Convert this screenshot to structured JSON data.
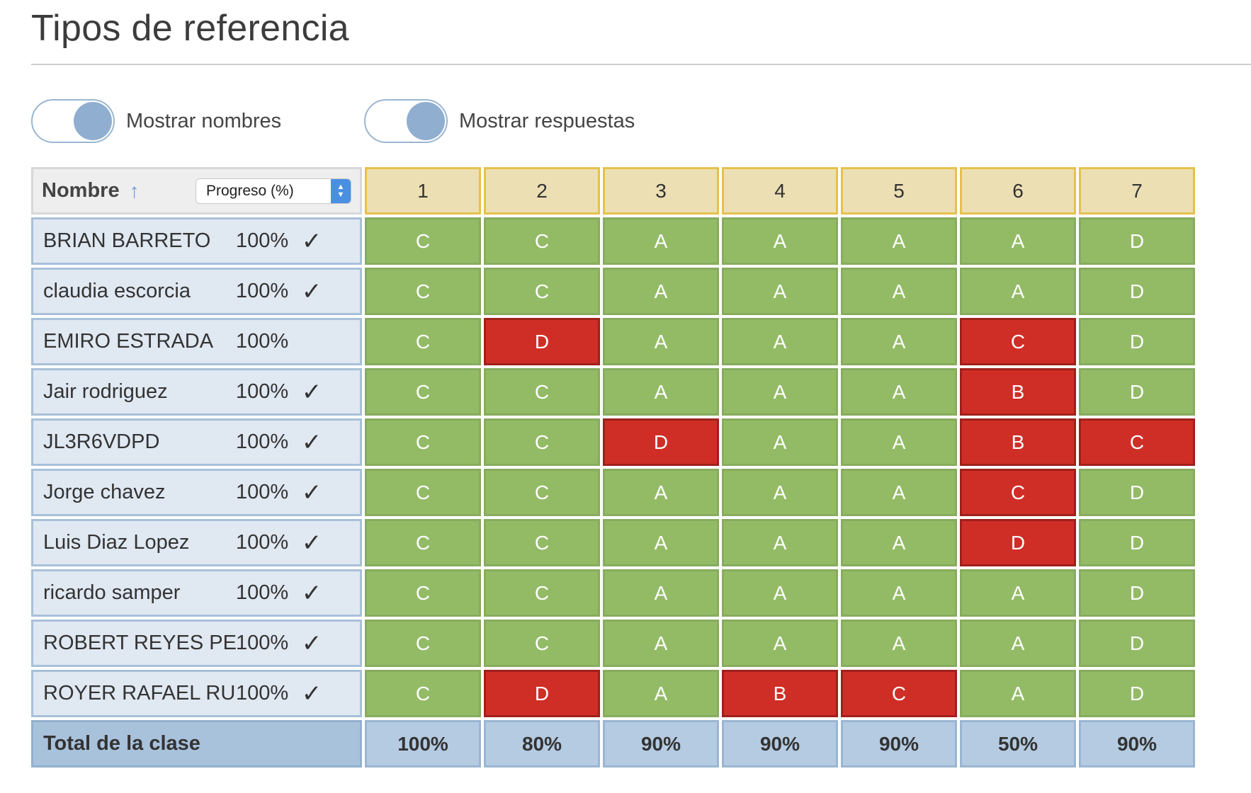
{
  "page": {
    "title": "Tipos de referencia"
  },
  "toggles": [
    {
      "label": "Mostrar nombres",
      "on": true
    },
    {
      "label": "Mostrar respuestas",
      "on": true
    }
  ],
  "header": {
    "name_label": "Nombre",
    "sort_icon": "arrow-up-icon",
    "select_value": "Progreso (%)",
    "questions": [
      "1",
      "2",
      "3",
      "4",
      "5",
      "6",
      "7"
    ]
  },
  "students": [
    {
      "name": "BRIAN BARRETO",
      "progress": "100%",
      "check": "✓",
      "answers": [
        "C",
        "C",
        "A",
        "A",
        "A",
        "A",
        "D"
      ],
      "correct": [
        true,
        true,
        true,
        true,
        true,
        true,
        true
      ]
    },
    {
      "name": "claudia escorcia",
      "progress": "100%",
      "check": "✓",
      "answers": [
        "C",
        "C",
        "A",
        "A",
        "A",
        "A",
        "D"
      ],
      "correct": [
        true,
        true,
        true,
        true,
        true,
        true,
        true
      ]
    },
    {
      "name": "EMIRO ESTRADA",
      "progress": "100%",
      "check": "",
      "answers": [
        "C",
        "D",
        "A",
        "A",
        "A",
        "C",
        "D"
      ],
      "correct": [
        true,
        false,
        true,
        true,
        true,
        false,
        true
      ]
    },
    {
      "name": "Jair rodriguez",
      "progress": "100%",
      "check": "✓",
      "answers": [
        "C",
        "C",
        "A",
        "A",
        "A",
        "B",
        "D"
      ],
      "correct": [
        true,
        true,
        true,
        true,
        true,
        false,
        true
      ]
    },
    {
      "name": "JL3R6VDPD",
      "progress": "100%",
      "check": "✓",
      "answers": [
        "C",
        "C",
        "D",
        "A",
        "A",
        "B",
        "C"
      ],
      "correct": [
        true,
        true,
        false,
        true,
        true,
        false,
        false
      ]
    },
    {
      "name": "Jorge chavez",
      "progress": "100%",
      "check": "✓",
      "answers": [
        "C",
        "C",
        "A",
        "A",
        "A",
        "C",
        "D"
      ],
      "correct": [
        true,
        true,
        true,
        true,
        true,
        false,
        true
      ]
    },
    {
      "name": "Luis Diaz Lopez",
      "progress": "100%",
      "check": "✓",
      "answers": [
        "C",
        "C",
        "A",
        "A",
        "A",
        "D",
        "D"
      ],
      "correct": [
        true,
        true,
        true,
        true,
        true,
        false,
        true
      ]
    },
    {
      "name": "ricardo samper",
      "progress": "100%",
      "check": "✓",
      "answers": [
        "C",
        "C",
        "A",
        "A",
        "A",
        "A",
        "D"
      ],
      "correct": [
        true,
        true,
        true,
        true,
        true,
        true,
        true
      ]
    },
    {
      "name": "ROBERT REYES PERALTA",
      "progress": "100%",
      "check": "✓",
      "answers": [
        "C",
        "C",
        "A",
        "A",
        "A",
        "A",
        "D"
      ],
      "correct": [
        true,
        true,
        true,
        true,
        true,
        true,
        true
      ]
    },
    {
      "name": "ROYER RAFAEL RUIZ",
      "progress": "100%",
      "check": "✓",
      "answers": [
        "C",
        "D",
        "A",
        "B",
        "C",
        "A",
        "D"
      ],
      "correct": [
        true,
        false,
        true,
        false,
        false,
        true,
        true
      ]
    }
  ],
  "totals": {
    "label": "Total de la clase",
    "values": [
      "100%",
      "80%",
      "90%",
      "90%",
      "90%",
      "50%",
      "90%"
    ]
  },
  "colors": {
    "correct": "#93bb66",
    "incorrect": "#cf2e27",
    "header_question": "#ecdfb4",
    "name_bg": "#e0e8f2",
    "total_bg": "#b4cbe2"
  }
}
